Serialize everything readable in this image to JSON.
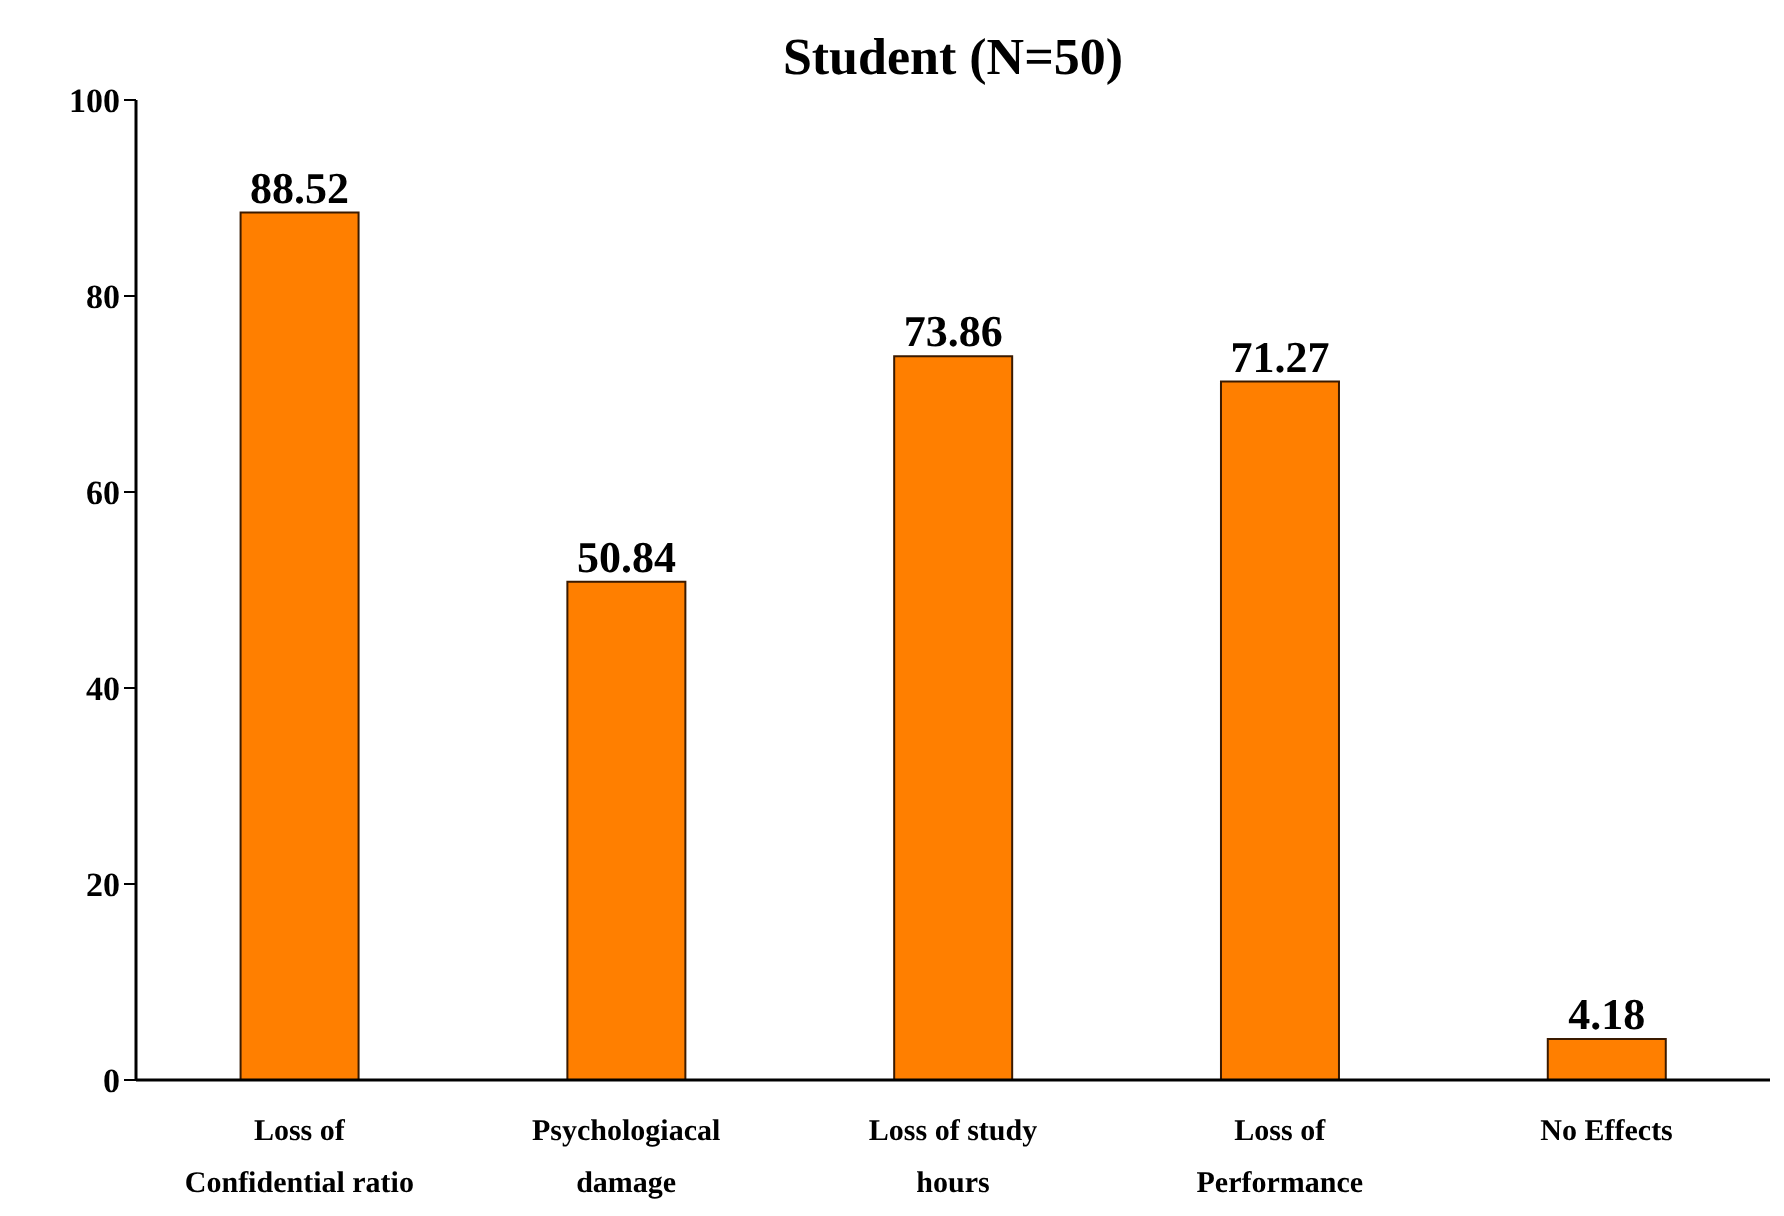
{
  "chart_data": {
    "type": "bar",
    "title": "Student (N=50)",
    "categories": [
      "Loss of\nConfidential ratio",
      "Psychologiacal\ndamage",
      "Loss of study\nhours",
      "Loss of\nPerformance",
      "No Effects"
    ],
    "values": [
      88.52,
      50.84,
      73.86,
      71.27,
      4.18
    ],
    "color": "#ff7f00",
    "ylim": [
      0,
      100
    ],
    "yticks": [
      0,
      20,
      40,
      60,
      80,
      100
    ],
    "grid": false,
    "data_labels": true
  }
}
